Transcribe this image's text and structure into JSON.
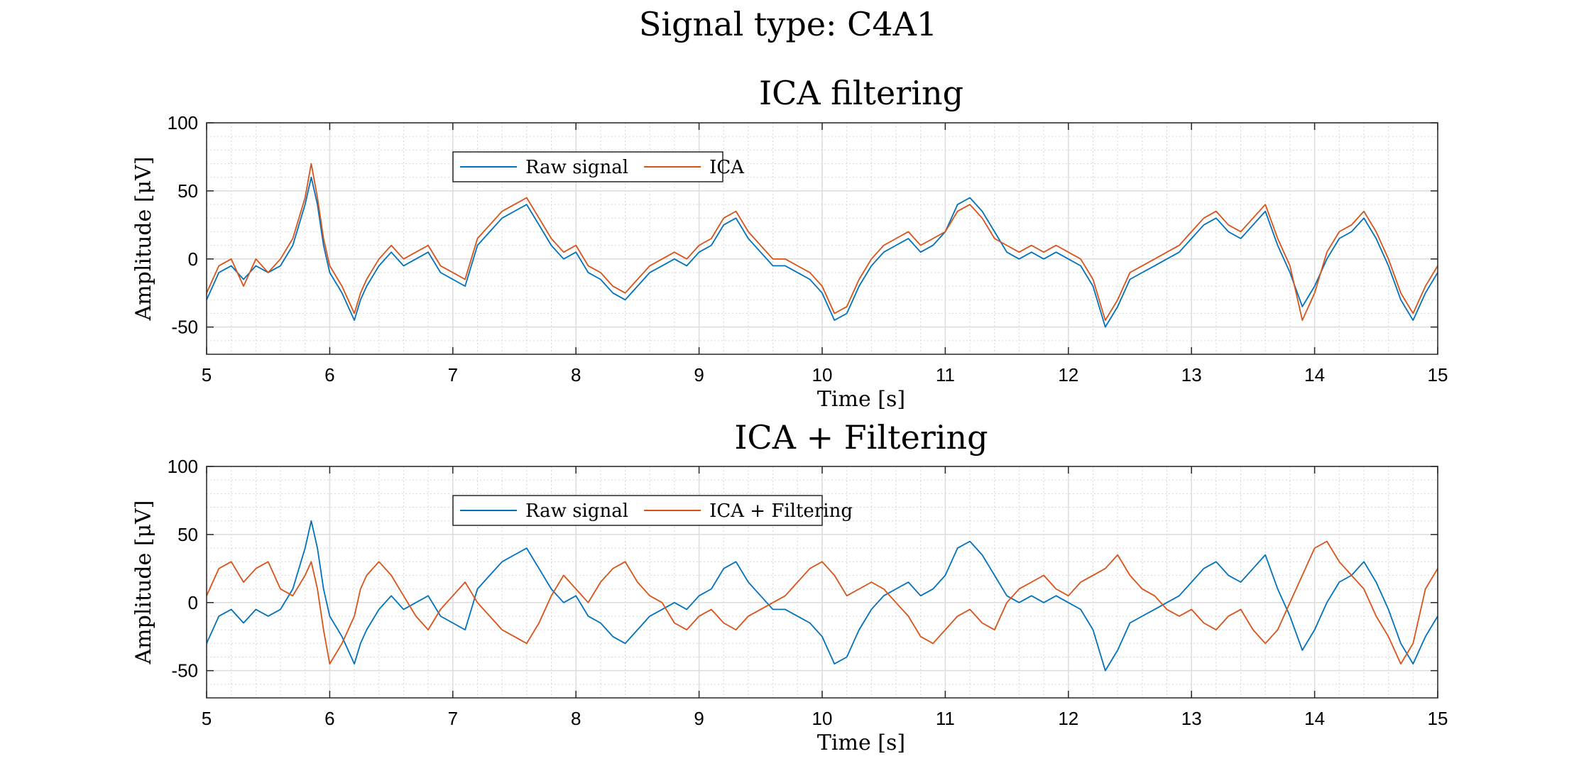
{
  "figure": {
    "suptitle": "Signal type: C4A1"
  },
  "chart_data": [
    {
      "type": "line",
      "title": "ICA filtering",
      "xlabel": "Time [s]",
      "ylabel": "Amplitude [μV]",
      "xlim": [
        5,
        15
      ],
      "ylim": [
        -70,
        100
      ],
      "xticks": [
        5,
        6,
        7,
        8,
        9,
        10,
        11,
        12,
        13,
        14,
        15
      ],
      "yticks": [
        -50,
        0,
        50,
        100
      ],
      "grid": true,
      "minor_grid": true,
      "legend_position": "top-left, inside",
      "series": [
        {
          "name": "Raw signal",
          "color": "#0072BD",
          "x": [
            5.0,
            5.1,
            5.2,
            5.3,
            5.4,
            5.5,
            5.6,
            5.7,
            5.8,
            5.85,
            5.9,
            5.95,
            6.0,
            6.1,
            6.2,
            6.25,
            6.3,
            6.4,
            6.5,
            6.6,
            6.7,
            6.8,
            6.9,
            7.0,
            7.1,
            7.2,
            7.3,
            7.4,
            7.5,
            7.6,
            7.7,
            7.8,
            7.9,
            8.0,
            8.1,
            8.2,
            8.3,
            8.4,
            8.5,
            8.6,
            8.7,
            8.8,
            8.9,
            9.0,
            9.1,
            9.2,
            9.3,
            9.4,
            9.5,
            9.6,
            9.7,
            9.8,
            9.9,
            10.0,
            10.1,
            10.2,
            10.3,
            10.4,
            10.5,
            10.6,
            10.7,
            10.8,
            10.9,
            11.0,
            11.1,
            11.2,
            11.3,
            11.4,
            11.5,
            11.6,
            11.7,
            11.8,
            11.9,
            12.0,
            12.1,
            12.2,
            12.3,
            12.4,
            12.5,
            12.6,
            12.7,
            12.8,
            12.9,
            13.0,
            13.1,
            13.2,
            13.3,
            13.4,
            13.5,
            13.6,
            13.7,
            13.8,
            13.9,
            14.0,
            14.1,
            14.2,
            14.3,
            14.4,
            14.5,
            14.6,
            14.7,
            14.8,
            14.9,
            15.0
          ],
          "y": [
            -30,
            -10,
            -5,
            -15,
            -5,
            -10,
            -5,
            10,
            40,
            60,
            40,
            10,
            -10,
            -25,
            -45,
            -30,
            -20,
            -5,
            5,
            -5,
            0,
            5,
            -10,
            -15,
            -20,
            10,
            20,
            30,
            35,
            40,
            25,
            10,
            0,
            5,
            -10,
            -15,
            -25,
            -30,
            -20,
            -10,
            -5,
            0,
            -5,
            5,
            10,
            25,
            30,
            15,
            5,
            -5,
            -5,
            -10,
            -15,
            -25,
            -45,
            -40,
            -20,
            -5,
            5,
            10,
            15,
            5,
            10,
            20,
            40,
            45,
            35,
            20,
            5,
            0,
            5,
            0,
            5,
            0,
            -5,
            -20,
            -50,
            -35,
            -15,
            -10,
            -5,
            0,
            5,
            15,
            25,
            30,
            20,
            15,
            25,
            35,
            10,
            -10,
            -35,
            -20,
            0,
            15,
            20,
            30,
            15,
            -5,
            -30,
            -45,
            -25,
            -10
          ]
        },
        {
          "name": "ICA",
          "color": "#D95319",
          "x": [
            5.0,
            5.1,
            5.2,
            5.3,
            5.4,
            5.5,
            5.6,
            5.7,
            5.8,
            5.85,
            5.9,
            5.95,
            6.0,
            6.1,
            6.2,
            6.25,
            6.3,
            6.4,
            6.5,
            6.6,
            6.7,
            6.8,
            6.9,
            7.0,
            7.1,
            7.2,
            7.3,
            7.4,
            7.5,
            7.6,
            7.7,
            7.8,
            7.9,
            8.0,
            8.1,
            8.2,
            8.3,
            8.4,
            8.5,
            8.6,
            8.7,
            8.8,
            8.9,
            9.0,
            9.1,
            9.2,
            9.3,
            9.4,
            9.5,
            9.6,
            9.7,
            9.8,
            9.9,
            10.0,
            10.1,
            10.2,
            10.3,
            10.4,
            10.5,
            10.6,
            10.7,
            10.8,
            10.9,
            11.0,
            11.1,
            11.2,
            11.3,
            11.4,
            11.5,
            11.6,
            11.7,
            11.8,
            11.9,
            12.0,
            12.1,
            12.2,
            12.3,
            12.4,
            12.5,
            12.6,
            12.7,
            12.8,
            12.9,
            13.0,
            13.1,
            13.2,
            13.3,
            13.4,
            13.5,
            13.6,
            13.7,
            13.8,
            13.9,
            14.0,
            14.1,
            14.2,
            14.3,
            14.4,
            14.5,
            14.6,
            14.7,
            14.8,
            14.9,
            15.0
          ],
          "y": [
            -25,
            -5,
            0,
            -20,
            0,
            -10,
            0,
            15,
            45,
            70,
            45,
            15,
            -5,
            -20,
            -40,
            -25,
            -15,
            0,
            10,
            0,
            5,
            10,
            -5,
            -10,
            -15,
            15,
            25,
            35,
            40,
            45,
            30,
            15,
            5,
            10,
            -5,
            -10,
            -20,
            -25,
            -15,
            -5,
            0,
            5,
            0,
            10,
            15,
            30,
            35,
            20,
            10,
            0,
            0,
            -5,
            -10,
            -20,
            -40,
            -35,
            -15,
            0,
            10,
            15,
            20,
            10,
            15,
            20,
            35,
            40,
            30,
            15,
            10,
            5,
            10,
            5,
            10,
            5,
            0,
            -15,
            -45,
            -30,
            -10,
            -5,
            0,
            5,
            10,
            20,
            30,
            35,
            25,
            20,
            30,
            40,
            15,
            -5,
            -45,
            -25,
            5,
            20,
            25,
            35,
            20,
            0,
            -25,
            -40,
            -20,
            -5
          ]
        }
      ]
    },
    {
      "type": "line",
      "title": "ICA + Filtering",
      "xlabel": "Time [s]",
      "ylabel": "Amplitude [μV]",
      "xlim": [
        5,
        15
      ],
      "ylim": [
        -70,
        100
      ],
      "xticks": [
        5,
        6,
        7,
        8,
        9,
        10,
        11,
        12,
        13,
        14,
        15
      ],
      "yticks": [
        -50,
        0,
        50,
        100
      ],
      "grid": true,
      "minor_grid": true,
      "legend_position": "top-left, inside",
      "series": [
        {
          "name": "Raw signal",
          "color": "#0072BD",
          "x": [
            5.0,
            5.1,
            5.2,
            5.3,
            5.4,
            5.5,
            5.6,
            5.7,
            5.8,
            5.85,
            5.9,
            5.95,
            6.0,
            6.1,
            6.2,
            6.25,
            6.3,
            6.4,
            6.5,
            6.6,
            6.7,
            6.8,
            6.9,
            7.0,
            7.1,
            7.2,
            7.3,
            7.4,
            7.5,
            7.6,
            7.7,
            7.8,
            7.9,
            8.0,
            8.1,
            8.2,
            8.3,
            8.4,
            8.5,
            8.6,
            8.7,
            8.8,
            8.9,
            9.0,
            9.1,
            9.2,
            9.3,
            9.4,
            9.5,
            9.6,
            9.7,
            9.8,
            9.9,
            10.0,
            10.1,
            10.2,
            10.3,
            10.4,
            10.5,
            10.6,
            10.7,
            10.8,
            10.9,
            11.0,
            11.1,
            11.2,
            11.3,
            11.4,
            11.5,
            11.6,
            11.7,
            11.8,
            11.9,
            12.0,
            12.1,
            12.2,
            12.3,
            12.4,
            12.5,
            12.6,
            12.7,
            12.8,
            12.9,
            13.0,
            13.1,
            13.2,
            13.3,
            13.4,
            13.5,
            13.6,
            13.7,
            13.8,
            13.9,
            14.0,
            14.1,
            14.2,
            14.3,
            14.4,
            14.5,
            14.6,
            14.7,
            14.8,
            14.9,
            15.0
          ],
          "y": [
            -30,
            -10,
            -5,
            -15,
            -5,
            -10,
            -5,
            10,
            40,
            60,
            40,
            10,
            -10,
            -25,
            -45,
            -30,
            -20,
            -5,
            5,
            -5,
            0,
            5,
            -10,
            -15,
            -20,
            10,
            20,
            30,
            35,
            40,
            25,
            10,
            0,
            5,
            -10,
            -15,
            -25,
            -30,
            -20,
            -10,
            -5,
            0,
            -5,
            5,
            10,
            25,
            30,
            15,
            5,
            -5,
            -5,
            -10,
            -15,
            -25,
            -45,
            -40,
            -20,
            -5,
            5,
            10,
            15,
            5,
            10,
            20,
            40,
            45,
            35,
            20,
            5,
            0,
            5,
            0,
            5,
            0,
            -5,
            -20,
            -50,
            -35,
            -15,
            -10,
            -5,
            0,
            5,
            15,
            25,
            30,
            20,
            15,
            25,
            35,
            10,
            -10,
            -35,
            -20,
            0,
            15,
            20,
            30,
            15,
            -5,
            -30,
            -45,
            -25,
            -10
          ]
        },
        {
          "name": "ICA + Filtering",
          "color": "#D95319",
          "x": [
            5.0,
            5.1,
            5.2,
            5.3,
            5.4,
            5.5,
            5.6,
            5.7,
            5.8,
            5.85,
            5.9,
            5.95,
            6.0,
            6.1,
            6.2,
            6.25,
            6.3,
            6.4,
            6.5,
            6.6,
            6.7,
            6.8,
            6.9,
            7.0,
            7.1,
            7.2,
            7.3,
            7.4,
            7.5,
            7.6,
            7.7,
            7.8,
            7.9,
            8.0,
            8.1,
            8.2,
            8.3,
            8.4,
            8.5,
            8.6,
            8.7,
            8.8,
            8.9,
            9.0,
            9.1,
            9.2,
            9.3,
            9.4,
            9.5,
            9.6,
            9.7,
            9.8,
            9.9,
            10.0,
            10.1,
            10.2,
            10.3,
            10.4,
            10.5,
            10.6,
            10.7,
            10.8,
            10.9,
            11.0,
            11.1,
            11.2,
            11.3,
            11.4,
            11.5,
            11.6,
            11.7,
            11.8,
            11.9,
            12.0,
            12.1,
            12.2,
            12.3,
            12.4,
            12.5,
            12.6,
            12.7,
            12.8,
            12.9,
            13.0,
            13.1,
            13.2,
            13.3,
            13.4,
            13.5,
            13.6,
            13.7,
            13.8,
            13.9,
            14.0,
            14.1,
            14.2,
            14.3,
            14.4,
            14.5,
            14.6,
            14.7,
            14.8,
            14.9,
            15.0
          ],
          "y": [
            5,
            25,
            30,
            15,
            25,
            30,
            10,
            5,
            20,
            30,
            10,
            -20,
            -45,
            -30,
            -10,
            10,
            20,
            30,
            20,
            5,
            -10,
            -20,
            -5,
            5,
            15,
            0,
            -10,
            -20,
            -25,
            -30,
            -15,
            5,
            20,
            10,
            0,
            15,
            25,
            30,
            15,
            5,
            0,
            -15,
            -20,
            -10,
            -5,
            -15,
            -20,
            -10,
            -5,
            0,
            5,
            15,
            25,
            30,
            20,
            5,
            10,
            15,
            10,
            0,
            -10,
            -25,
            -30,
            -20,
            -10,
            -5,
            -15,
            -20,
            0,
            10,
            15,
            20,
            10,
            5,
            15,
            20,
            25,
            35,
            20,
            10,
            5,
            -5,
            -10,
            -5,
            -15,
            -20,
            -10,
            -5,
            -20,
            -30,
            -20,
            0,
            20,
            40,
            45,
            30,
            20,
            10,
            -10,
            -25,
            -45,
            -30,
            10,
            25
          ]
        }
      ]
    }
  ]
}
